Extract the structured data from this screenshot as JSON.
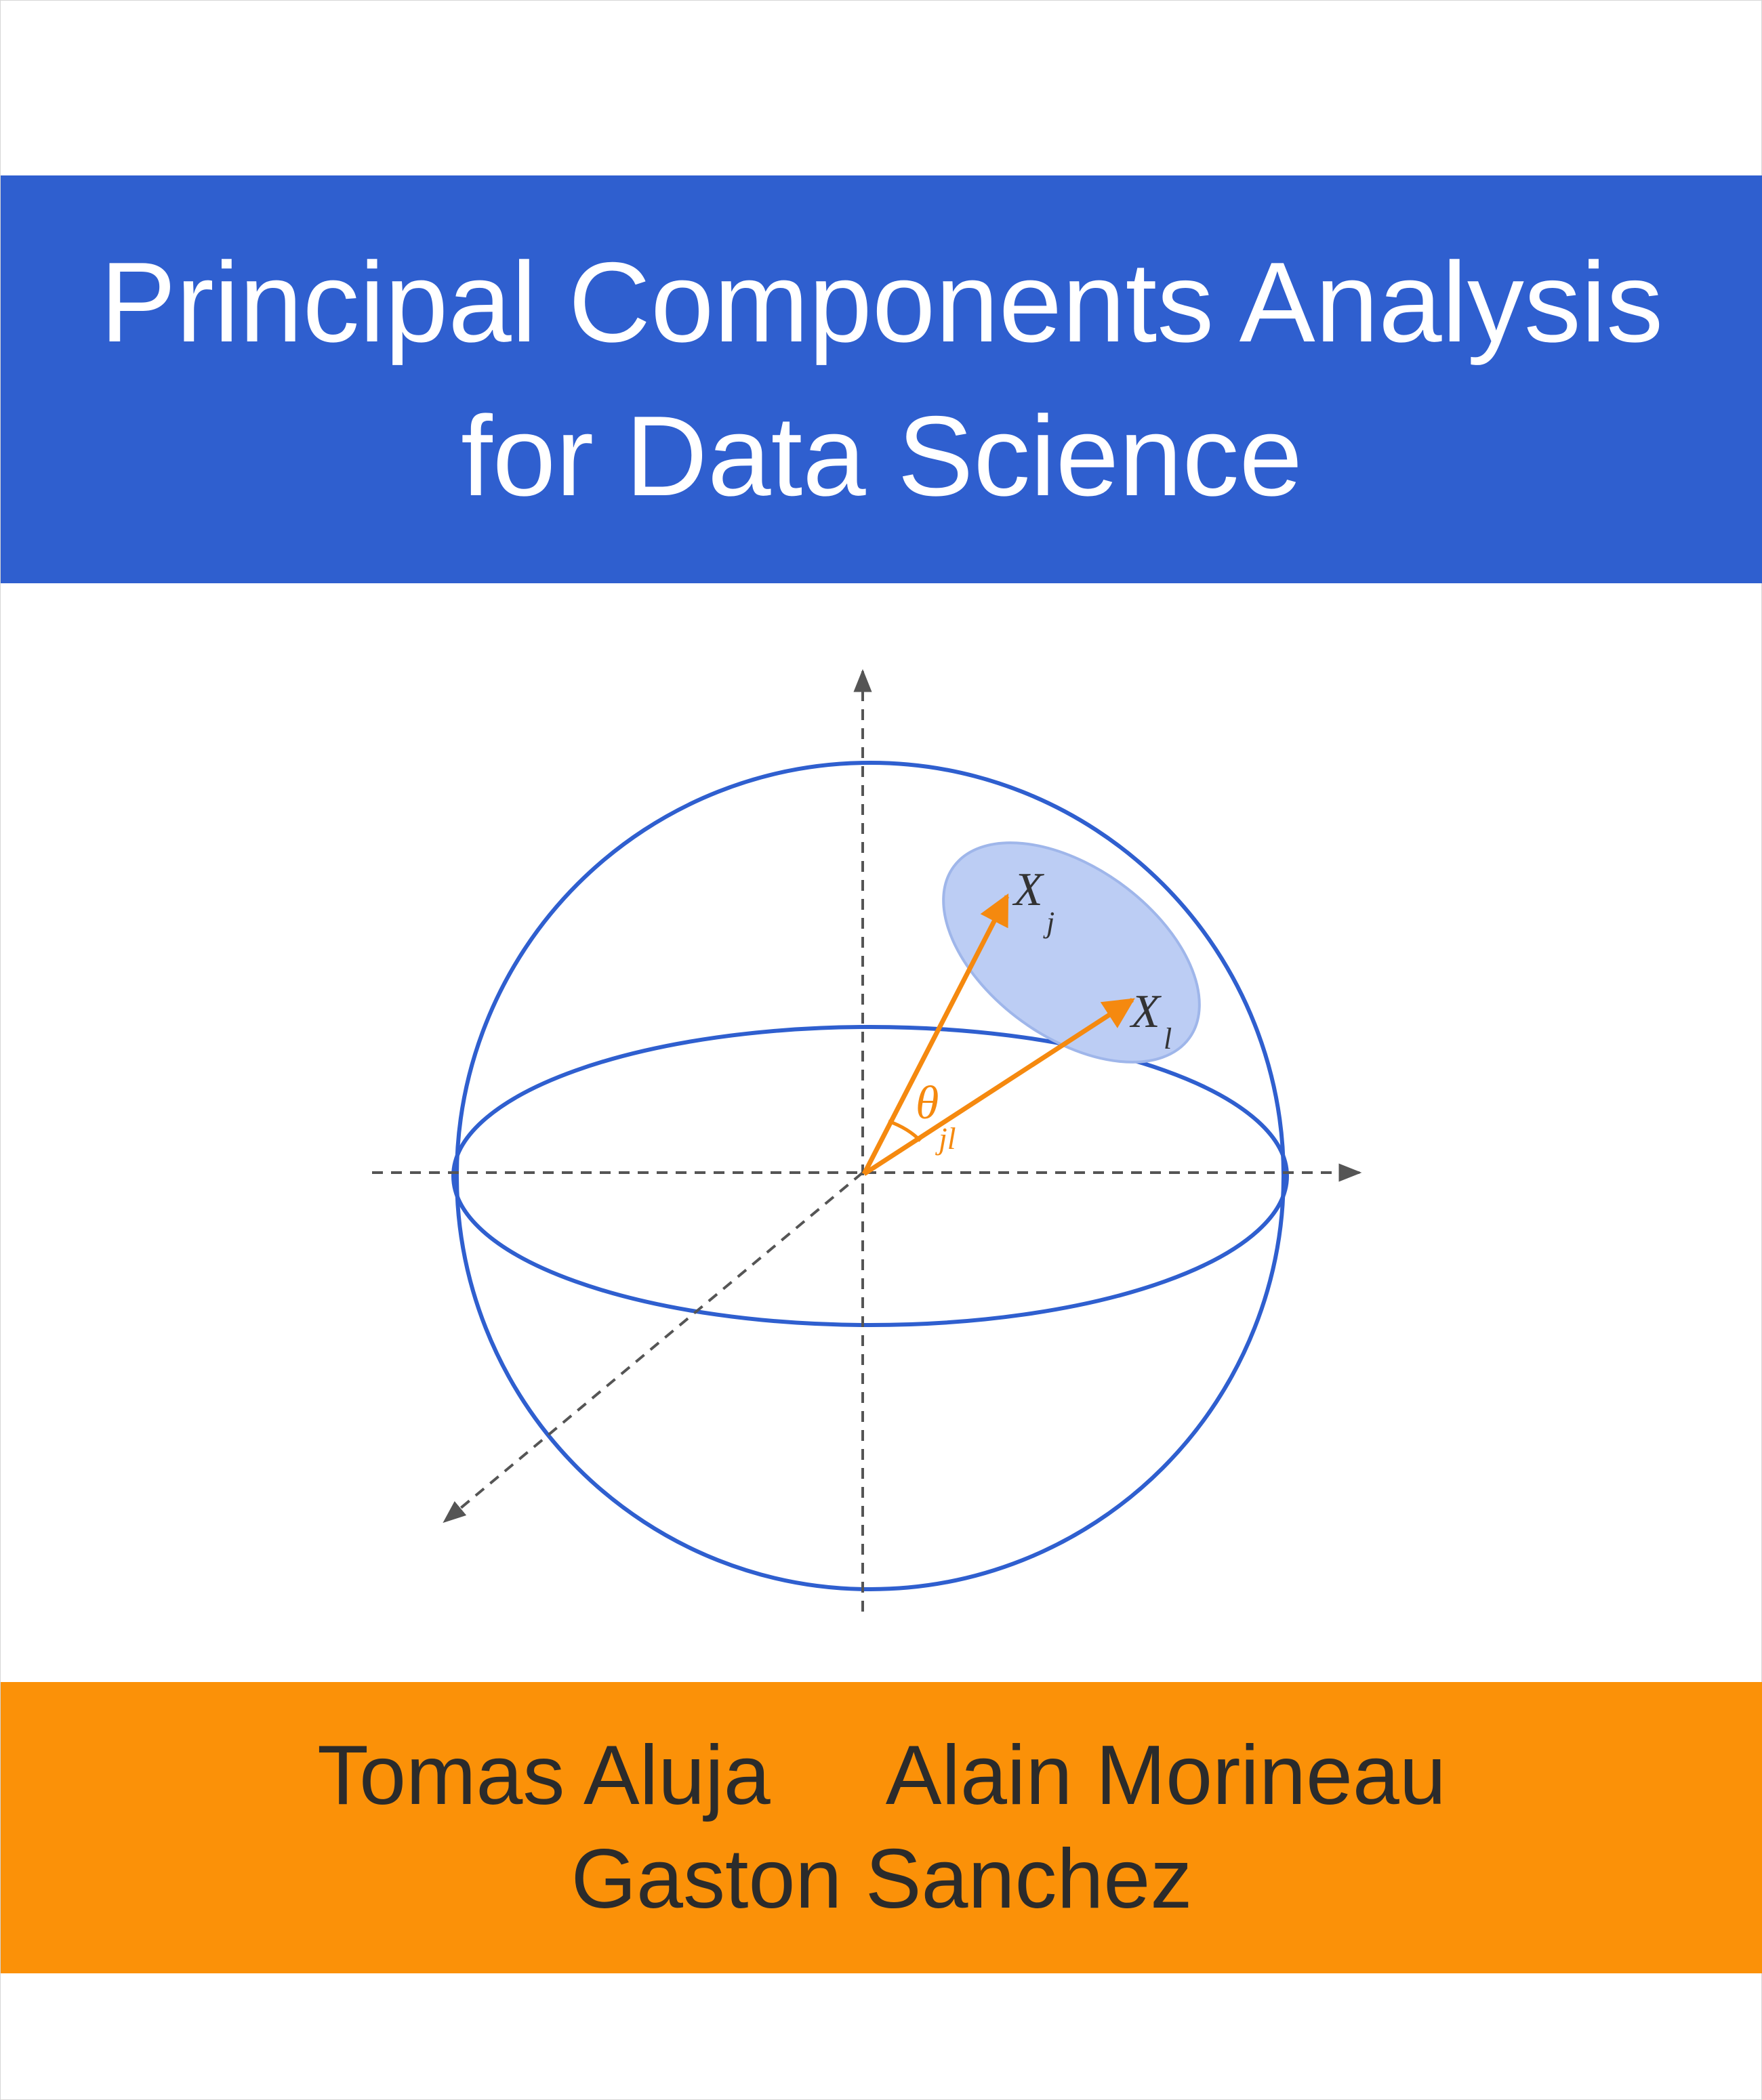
{
  "cover": {
    "title_line1": "Principal Components Analysis",
    "title_line2": "for Data Science",
    "authors": [
      "Tomas Aluja",
      "Alain Morineau",
      "Gaston Sanchez"
    ]
  },
  "figure": {
    "vector_j_label": "X",
    "vector_j_sub": "j",
    "vector_l_label": "X",
    "vector_l_sub": "l",
    "angle_label": "θ",
    "angle_sub": "jl"
  },
  "colors": {
    "title_band": "#2f5fcf",
    "author_band": "#fb9108",
    "sphere": "#2f5fcf",
    "vector": "#f5890f",
    "cap_fill": "#bccdf4",
    "axis": "#555555"
  }
}
